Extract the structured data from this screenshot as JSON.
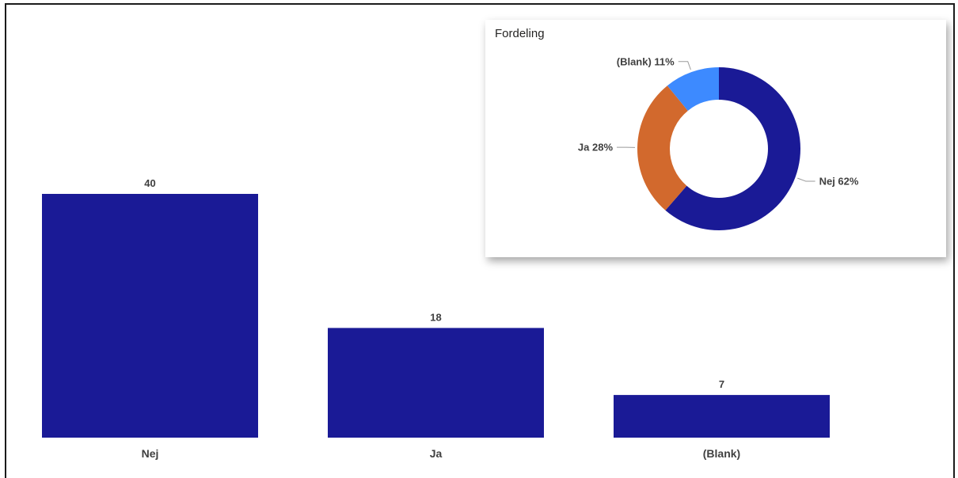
{
  "chart_data": [
    {
      "type": "bar",
      "categories": [
        "Nej",
        "Ja",
        "(Blank)"
      ],
      "values": [
        40,
        18,
        7
      ],
      "title": "",
      "xlabel": "",
      "ylabel": "",
      "ylim": [
        0,
        40
      ],
      "grid": false,
      "bar_color": "#1a1a96"
    },
    {
      "type": "pie",
      "donut": true,
      "title": "Fordeling",
      "slices": [
        {
          "label": "Nej",
          "value": 62,
          "display": "Nej 62%",
          "color": "#1a1a96"
        },
        {
          "label": "Ja",
          "value": 28,
          "display": "Ja 28%",
          "color": "#d2692d"
        },
        {
          "label": "(Blank)",
          "value": 11,
          "display": "(Blank) 11%",
          "color": "#3d8aff"
        }
      ]
    }
  ]
}
